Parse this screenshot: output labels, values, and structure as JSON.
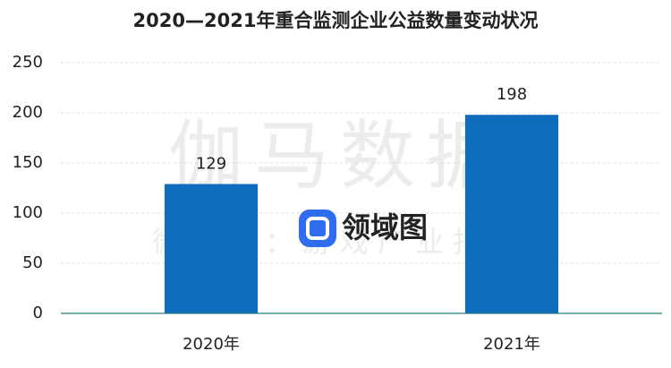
{
  "chart_data": {
    "type": "bar",
    "title": "2020—2021年重合监测企业公益数量变动状况",
    "categories": [
      "2020年",
      "2021年"
    ],
    "values": [
      129,
      198
    ],
    "color": "#0f6cbd",
    "ylim": [
      0,
      250
    ],
    "yticks": [
      0,
      50,
      100,
      150,
      200,
      250
    ],
    "grid": true,
    "watermark": [
      "伽马数据",
      "微信号：游戏产业报告",
      "领域图"
    ]
  }
}
